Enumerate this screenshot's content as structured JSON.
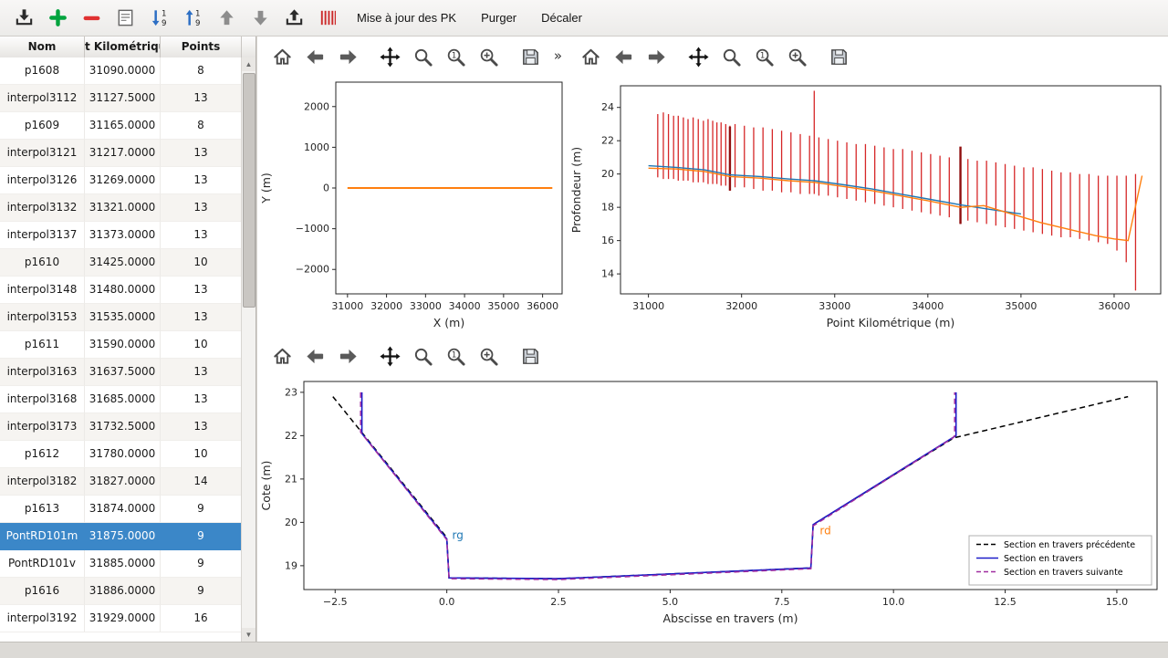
{
  "colors": {
    "selection": "#3b87c8",
    "blue": "#1f77b4",
    "orange": "#ff7f0e",
    "red": "#d62728"
  },
  "toolbar": {
    "icons": [
      "import",
      "add",
      "remove",
      "edit-form",
      "sort-descending",
      "sort-ascending",
      "move-up",
      "move-down",
      "export",
      "sections"
    ],
    "menu_items": [
      "Mise à jour des PK",
      "Purger",
      "Décaler"
    ]
  },
  "table": {
    "columns": [
      "Nom",
      "t Kilométriqu",
      "Points"
    ],
    "selected_index": 17,
    "rows": [
      [
        "p1608",
        "31090.0000",
        "8"
      ],
      [
        "interpol3112",
        "31127.5000",
        "13"
      ],
      [
        "p1609",
        "31165.0000",
        "8"
      ],
      [
        "interpol3121",
        "31217.0000",
        "13"
      ],
      [
        "interpol3126",
        "31269.0000",
        "13"
      ],
      [
        "interpol3132",
        "31321.0000",
        "13"
      ],
      [
        "interpol3137",
        "31373.0000",
        "13"
      ],
      [
        "p1610",
        "31425.0000",
        "10"
      ],
      [
        "interpol3148",
        "31480.0000",
        "13"
      ],
      [
        "interpol3153",
        "31535.0000",
        "13"
      ],
      [
        "p1611",
        "31590.0000",
        "10"
      ],
      [
        "interpol3163",
        "31637.5000",
        "13"
      ],
      [
        "interpol3168",
        "31685.0000",
        "13"
      ],
      [
        "interpol3173",
        "31732.5000",
        "13"
      ],
      [
        "p1612",
        "31780.0000",
        "10"
      ],
      [
        "interpol3182",
        "31827.0000",
        "14"
      ],
      [
        "p1613",
        "31874.0000",
        "9"
      ],
      [
        "PontRD101m",
        "31875.0000",
        "9"
      ],
      [
        "PontRD101v",
        "31885.0000",
        "9"
      ],
      [
        "p1616",
        "31886.0000",
        "9"
      ],
      [
        "interpol3192",
        "31929.0000",
        "16"
      ]
    ]
  },
  "chart_toolbar": {
    "icons": [
      "home",
      "back",
      "forward",
      "pan",
      "zoom",
      "zoom-one",
      "zoom-plus",
      "save"
    ],
    "overflow": "»"
  },
  "chart_data": [
    {
      "id": "plan",
      "type": "line",
      "xlabel": "X (m)",
      "ylabel": "Y (m)",
      "xlim": [
        30700,
        36500
      ],
      "ylim": [
        -2600,
        2600
      ],
      "xticks": [
        31000,
        32000,
        33000,
        34000,
        35000,
        36000
      ],
      "yticks": [
        -2000,
        -1000,
        0,
        1000,
        2000
      ],
      "ytick_labels": [
        "−2000",
        "−1000",
        "0",
        "1000",
        "2000"
      ],
      "series": [
        {
          "name": "axe-plan",
          "color": "#ff7f0e",
          "width": 2,
          "x": [
            31000,
            36250
          ],
          "y": [
            0,
            0
          ]
        }
      ]
    },
    {
      "id": "profil_long",
      "type": "line",
      "xlabel": "Point Kilométrique (m)",
      "ylabel": "Profondeur (m)",
      "xlim": [
        30700,
        36500
      ],
      "ylim": [
        12.8,
        25.3
      ],
      "xticks": [
        31000,
        32000,
        33000,
        34000,
        35000,
        36000
      ],
      "yticks": [
        14,
        16,
        18,
        20,
        22,
        24
      ],
      "bar_groups": [
        {
          "name": "sections-range",
          "color": "#d62728",
          "width": 1.3,
          "x": [
            31100,
            31160,
            31215,
            31270,
            31320,
            31375,
            31425,
            31480,
            31535,
            31590,
            31640,
            31690,
            31735,
            31780,
            31830,
            31875,
            31930,
            32030,
            32130,
            32230,
            32330,
            32430,
            32530,
            32630,
            32730,
            32780,
            32830,
            32930,
            33030,
            33130,
            33230,
            33330,
            33430,
            33530,
            33630,
            33730,
            33830,
            33930,
            34030,
            34130,
            34230,
            34350,
            34430,
            34530,
            34630,
            34730,
            34830,
            34930,
            35030,
            35130,
            35230,
            35330,
            35430,
            35530,
            35630,
            35730,
            35830,
            35930,
            36030,
            36130,
            36230
          ],
          "ymax": [
            23.6,
            23.7,
            23.6,
            23.5,
            23.5,
            23.4,
            23.3,
            23.4,
            23.3,
            23.2,
            23.3,
            23.2,
            23.1,
            23.1,
            23.0,
            22.9,
            23.0,
            22.9,
            22.8,
            22.8,
            22.7,
            22.6,
            22.5,
            22.4,
            22.3,
            25.0,
            22.2,
            22.1,
            22.0,
            21.9,
            21.8,
            21.8,
            21.7,
            21.6,
            21.5,
            21.5,
            21.4,
            21.3,
            21.2,
            21.1,
            21.0,
            21.6,
            20.9,
            20.8,
            20.8,
            20.7,
            20.6,
            20.5,
            20.4,
            20.4,
            20.3,
            20.2,
            20.1,
            20.1,
            20.0,
            20.0,
            19.9,
            19.9,
            19.9,
            19.9,
            20.0
          ],
          "ymin": [
            19.8,
            19.7,
            19.7,
            19.7,
            19.6,
            19.6,
            19.6,
            19.5,
            19.5,
            19.5,
            19.4,
            19.4,
            19.4,
            19.3,
            19.3,
            19.0,
            19.2,
            19.2,
            19.1,
            19.0,
            19.0,
            18.9,
            18.9,
            18.8,
            18.8,
            18.8,
            18.7,
            18.7,
            18.6,
            18.5,
            18.4,
            18.3,
            18.2,
            18.1,
            18.0,
            17.9,
            17.8,
            17.7,
            17.6,
            17.5,
            17.4,
            17.0,
            17.2,
            17.1,
            17.0,
            16.9,
            16.8,
            16.7,
            16.6,
            16.5,
            16.4,
            16.3,
            16.2,
            16.2,
            16.1,
            16.0,
            15.9,
            15.8,
            15.4,
            14.7,
            13.0
          ]
        },
        {
          "name": "sections-marked",
          "color": "#8f0e0e",
          "width": 2.4,
          "x": [
            31875,
            34350
          ],
          "ymin": [
            19.0,
            17.0
          ],
          "ymax": [
            22.85,
            21.65
          ]
        }
      ],
      "series": [
        {
          "name": "fond-bleu",
          "color": "#1f77b4",
          "width": 1.4,
          "x": [
            31000,
            31300,
            31600,
            31875,
            32200,
            32500,
            32780,
            33100,
            33400,
            33700,
            34000,
            34350,
            34700,
            35000
          ],
          "y": [
            20.5,
            20.4,
            20.25,
            19.95,
            19.85,
            19.7,
            19.6,
            19.35,
            19.1,
            18.8,
            18.5,
            18.15,
            17.85,
            17.6
          ]
        },
        {
          "name": "fond-orange",
          "color": "#ff7f0e",
          "width": 1.4,
          "x": [
            31000,
            31300,
            31600,
            31875,
            32200,
            32500,
            32780,
            33100,
            33400,
            33700,
            34000,
            34350,
            34600,
            34900,
            35200,
            35500,
            35800,
            36000,
            36150,
            36300
          ],
          "y": [
            20.35,
            20.3,
            20.15,
            19.85,
            19.75,
            19.6,
            19.5,
            19.25,
            19.0,
            18.7,
            18.4,
            18.0,
            18.1,
            17.6,
            17.1,
            16.7,
            16.3,
            16.1,
            16.0,
            19.9
          ]
        }
      ]
    },
    {
      "id": "section_travers",
      "type": "line",
      "xlabel": "Abscisse en travers (m)",
      "ylabel": "Cote (m)",
      "xlim": [
        -3.2,
        15.9
      ],
      "ylim": [
        18.45,
        23.25
      ],
      "xticks": [
        -2.5,
        0.0,
        2.5,
        5.0,
        7.5,
        10.0,
        12.5,
        15.0
      ],
      "xtick_labels": [
        "−2.5",
        "0.0",
        "2.5",
        "5.0",
        "7.5",
        "10.0",
        "12.5",
        "15.0"
      ],
      "yticks": [
        19,
        20,
        21,
        22,
        23
      ],
      "series": [
        {
          "name": "section-precedente",
          "color": "#000000",
          "width": 1.5,
          "dash": "6,4",
          "x": [
            -2.55,
            0.0,
            0.05,
            2.5,
            8.15,
            8.2,
            11.35,
            15.25
          ],
          "y": [
            22.9,
            19.65,
            18.72,
            18.7,
            18.95,
            19.95,
            21.95,
            22.9
          ]
        },
        {
          "name": "section-courante",
          "color": "#1c1cc8",
          "width": 1.6,
          "x": [
            -1.9,
            -1.9,
            0.0,
            0.05,
            2.5,
            8.15,
            8.2,
            11.35,
            11.4,
            11.4
          ],
          "y": [
            23.0,
            22.05,
            19.62,
            18.72,
            18.7,
            18.95,
            19.95,
            21.97,
            22.0,
            23.0
          ]
        },
        {
          "name": "section-suivante",
          "color": "#a02ca0",
          "width": 1.5,
          "dash": "6,4",
          "x": [
            -1.93,
            -1.93,
            0.0,
            0.05,
            2.5,
            8.15,
            8.2,
            11.33,
            11.37,
            11.37
          ],
          "y": [
            23.0,
            22.08,
            19.6,
            18.7,
            18.68,
            18.93,
            19.92,
            21.95,
            22.0,
            23.0
          ]
        }
      ],
      "annotations": [
        {
          "text": "rg",
          "x": 0.12,
          "y": 19.62,
          "color": "#1f77b4"
        },
        {
          "text": "rd",
          "x": 8.35,
          "y": 19.72,
          "color": "#ff7f0e"
        }
      ],
      "legend": {
        "entries": [
          {
            "label": "Section en travers précédente",
            "color": "#000000",
            "dash": "5,3"
          },
          {
            "label": "Section en travers",
            "color": "#1c1cc8",
            "dash": ""
          },
          {
            "label": "Section en travers suivante",
            "color": "#a02ca0",
            "dash": "5,3"
          }
        ]
      }
    }
  ]
}
